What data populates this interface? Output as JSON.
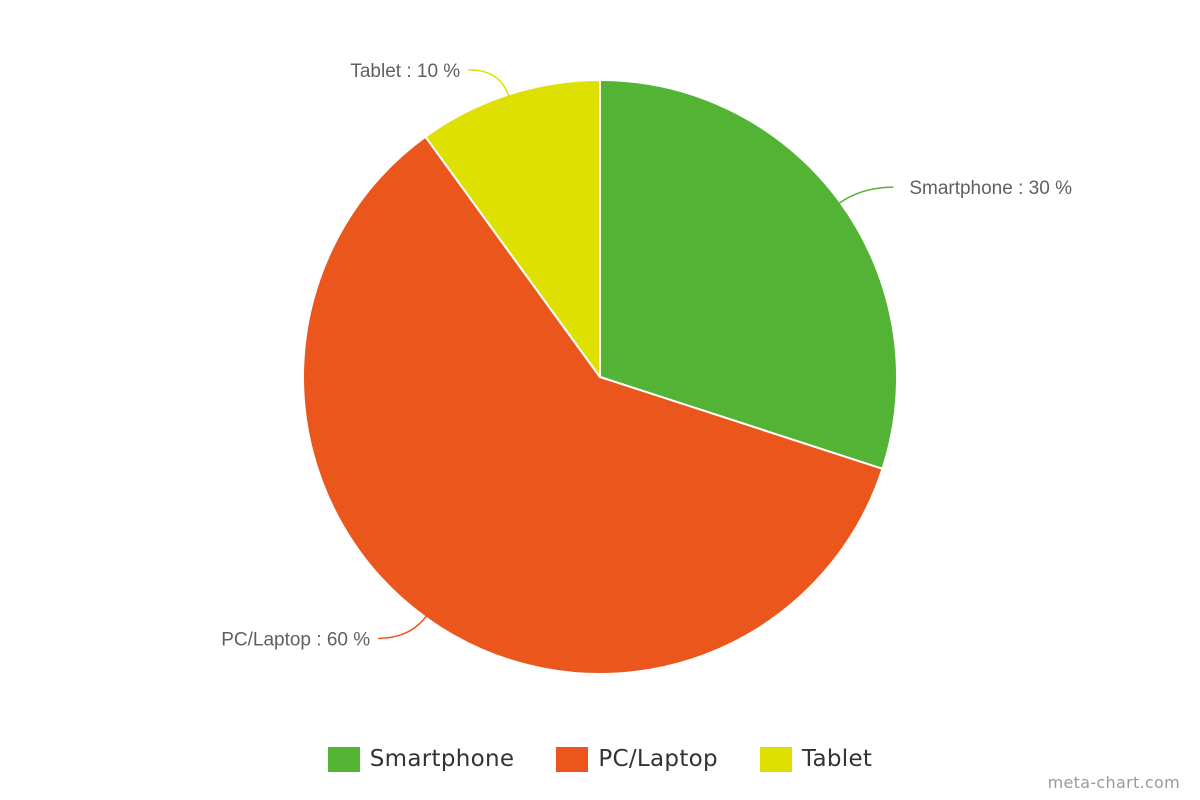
{
  "chart_data": {
    "type": "pie",
    "title": "",
    "slices": [
      {
        "label": "Smartphone",
        "value": 30,
        "data_label": "Smartphone : 30 %",
        "color": "#52b335"
      },
      {
        "label": "PC/Laptop",
        "value": 60,
        "data_label": "PC/Laptop : 60 %",
        "color": "#eb561d"
      },
      {
        "label": "Tablet",
        "value": 10,
        "data_label": "Tablet : 10 %",
        "color": "#dde000"
      }
    ],
    "legend": {
      "placement": "bottom-center",
      "items": [
        "Smartphone",
        "PC/Laptop",
        "Tablet"
      ]
    }
  },
  "watermark": "meta-chart.com"
}
